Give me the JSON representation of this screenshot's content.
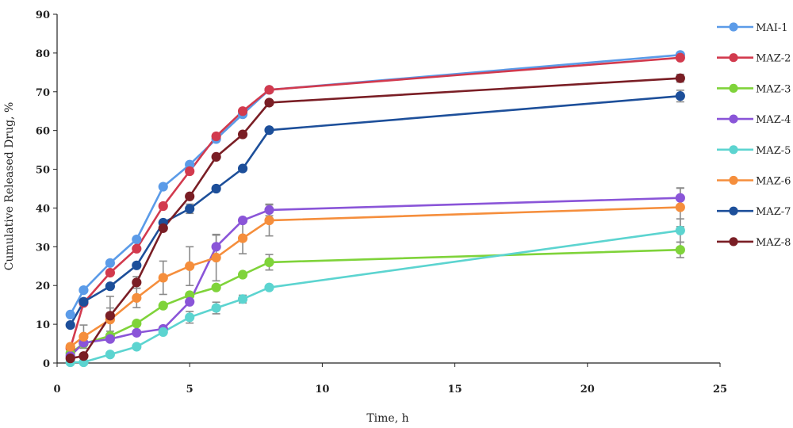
{
  "chart_data": {
    "type": "line",
    "title": "",
    "xlabel": "Time, h",
    "ylabel": "Cumulative Released Drug, %",
    "xlim": [
      0,
      25
    ],
    "ylim": [
      0,
      90
    ],
    "x_ticks": [
      0,
      5,
      10,
      15,
      20,
      25
    ],
    "y_ticks": [
      0,
      10,
      20,
      30,
      40,
      50,
      60,
      70,
      80,
      90
    ],
    "grid": false,
    "legend_position": "right",
    "x": [
      0.5,
      1,
      2,
      3,
      4,
      5,
      6,
      7,
      8,
      23.5
    ],
    "series": [
      {
        "name": "MAI-1",
        "color": "#5b9be8",
        "values": [
          12.5,
          18.8,
          25.8,
          31.9,
          45.5,
          51.2,
          57.8,
          64.2,
          70.5,
          79.5
        ],
        "error": [
          null,
          null,
          null,
          null,
          null,
          null,
          null,
          null,
          null,
          null
        ]
      },
      {
        "name": "MAZ-2",
        "color": "#d23a4e",
        "values": [
          3.8,
          15.5,
          23.3,
          29.5,
          40.5,
          49.5,
          58.5,
          65,
          70.5,
          78.8
        ],
        "error": [
          null,
          null,
          null,
          null,
          null,
          null,
          null,
          null,
          null,
          null
        ]
      },
      {
        "name": "MAZ-3",
        "color": "#7fd33a",
        "values": [
          2.5,
          5,
          7,
          10.2,
          14.8,
          17.5,
          19.5,
          22.8,
          26,
          29.2
        ],
        "error": [
          null,
          null,
          null,
          null,
          null,
          null,
          null,
          null,
          2,
          2
        ]
      },
      {
        "name": "MAZ-4",
        "color": "#8a55d8",
        "values": [
          1.8,
          5.2,
          6.2,
          7.8,
          8.8,
          15.8,
          30,
          36.8,
          39.5,
          42.6
        ],
        "error": [
          null,
          null,
          null,
          null,
          null,
          null,
          3,
          null,
          1.5,
          2.5
        ]
      },
      {
        "name": "MAZ-5",
        "color": "#5cd4d0",
        "values": [
          0.2,
          0.2,
          2.2,
          4.2,
          8,
          11.8,
          14.2,
          16.5,
          19.5,
          34.2
        ],
        "error": [
          null,
          null,
          null,
          null,
          null,
          1.5,
          1.5,
          1,
          null,
          3
        ]
      },
      {
        "name": "MAZ-6",
        "color": "#f58e3c",
        "values": [
          4.2,
          6.8,
          11.2,
          16.8,
          22,
          25,
          27.2,
          32.2,
          36.8,
          40.2
        ],
        "error": [
          null,
          3,
          3,
          2.5,
          4.3,
          5,
          6,
          4,
          4,
          5
        ]
      },
      {
        "name": "MAZ-7",
        "color": "#1d4f9a",
        "values": [
          9.8,
          15.8,
          19.8,
          25.2,
          36.2,
          39.8,
          45,
          50.2,
          60.1,
          68.9
        ],
        "error": [
          null,
          null,
          null,
          null,
          null,
          1.2,
          null,
          null,
          null,
          1.5
        ]
      },
      {
        "name": "MAZ-8",
        "color": "#7a1e25",
        "values": [
          1.2,
          1.8,
          12.2,
          20.8,
          34.8,
          43,
          53.2,
          59,
          67.2,
          73.5
        ],
        "error": [
          null,
          null,
          5,
          1.5,
          null,
          null,
          null,
          null,
          null,
          1
        ]
      }
    ]
  }
}
